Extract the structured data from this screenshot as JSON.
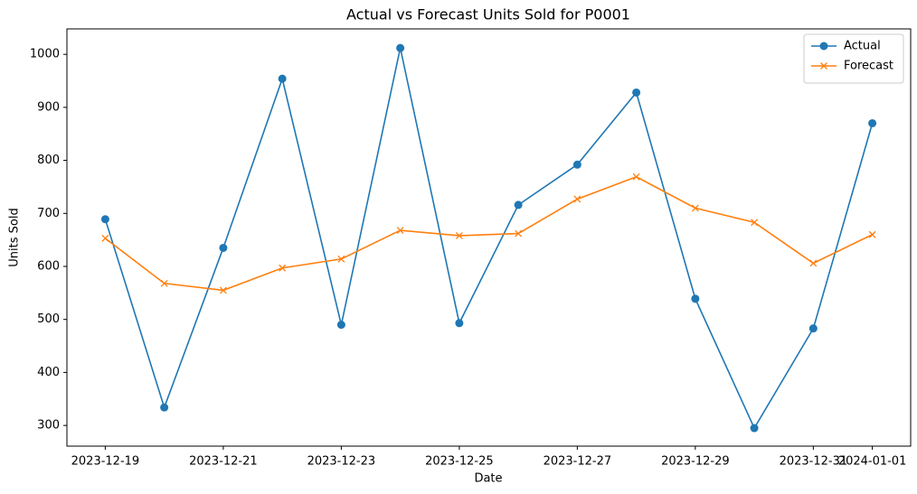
{
  "chart_data": {
    "type": "line",
    "title": "Actual vs Forecast Units Sold for P0001",
    "x_label": "Date",
    "y_label": "Units Sold",
    "x": [
      "2023-12-19",
      "2023-12-20",
      "2023-12-21",
      "2023-12-22",
      "2023-12-23",
      "2023-12-24",
      "2023-12-25",
      "2023-12-26",
      "2023-12-27",
      "2023-12-28",
      "2023-12-29",
      "2023-12-30",
      "2023-12-31",
      "2024-01-01"
    ],
    "series": [
      {
        "name": "Actual",
        "color": "#1f77b4",
        "marker": "circle",
        "values": [
          689,
          334,
          635,
          954,
          490,
          1012,
          493,
          716,
          792,
          928,
          539,
          295,
          483,
          870
        ]
      },
      {
        "name": "Forecast",
        "color": "#ff7f0e",
        "marker": "x",
        "values": [
          653,
          568,
          555,
          597,
          614,
          668,
          658,
          662,
          727,
          769,
          710,
          683,
          606,
          660
        ]
      }
    ],
    "xlim": [
      "2023-12-18T08:24",
      "2024-01-01T15:36"
    ],
    "xticks": [
      "2023-12-19",
      "2023-12-21",
      "2023-12-23",
      "2023-12-25",
      "2023-12-27",
      "2023-12-29",
      "2023-12-31",
      "2024-01-01"
    ],
    "ylim": [
      261,
      1048
    ],
    "yticks": [
      300,
      400,
      500,
      600,
      700,
      800,
      900,
      1000
    ],
    "grid": false,
    "legend": "upper right"
  }
}
